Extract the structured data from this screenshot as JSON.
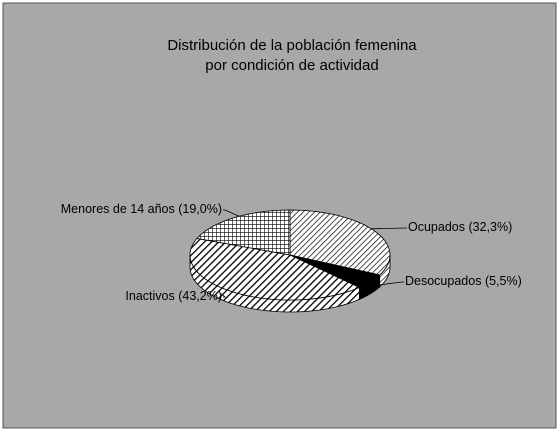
{
  "chart_data": {
    "type": "pie3d",
    "title": [
      "Distribución de la población femenina",
      "por condición de actividad"
    ],
    "categories": [
      "Ocupados",
      "Desocupados",
      "Inactivos",
      "Menores de 14 años"
    ],
    "values": [
      32.3,
      5.5,
      43.2,
      19.0
    ],
    "value_labels": [
      "(32,3%)",
      "(5,5%)",
      "(43,2%)",
      "(19,0%)"
    ],
    "background": "#a8a8a8"
  }
}
